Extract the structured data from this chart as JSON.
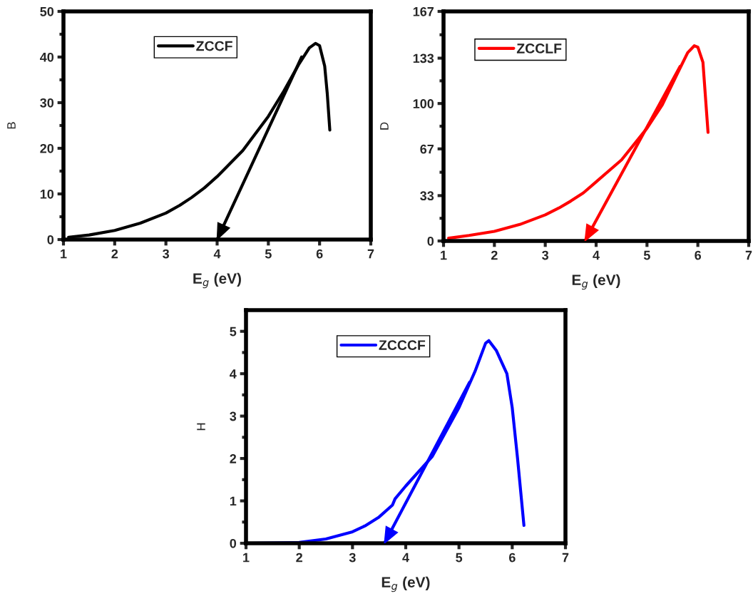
{
  "chart_data": [
    {
      "type": "line",
      "xlabel": "E$_{g}$ (eV)",
      "ylabel": "B",
      "xlim": [
        1,
        7
      ],
      "ylim": [
        0,
        50
      ],
      "xticks": [
        1,
        2,
        3,
        4,
        5,
        6,
        7
      ],
      "yticks": [
        0,
        10,
        20,
        30,
        40,
        50
      ],
      "legend": "top",
      "series": [
        {
          "name": "ZCCF",
          "color": "#000000",
          "x": [
            1.1,
            1.5,
            2.0,
            2.5,
            3.0,
            3.27,
            3.5,
            3.75,
            4.0,
            4.5,
            5.0,
            5.3,
            5.6,
            5.8,
            5.92,
            6.0,
            6.1,
            6.15,
            6.2
          ],
          "values": [
            0.5,
            1.0,
            2.0,
            3.6,
            5.8,
            7.5,
            9.2,
            11.3,
            13.8,
            19.5,
            27,
            32.5,
            38.5,
            42,
            43,
            42.5,
            38,
            32,
            24
          ]
        },
        {
          "type": "line",
          "color": "#000000",
          "x": [
            5.65,
            4.0
          ],
          "values": [
            40,
            0
          ]
        }
      ]
    },
    {
      "type": "line",
      "xlabel": "E$_{g}$ (eV)",
      "ylabel": "D",
      "xlim": [
        1,
        7
      ],
      "ylim": [
        0,
        167
      ],
      "xticks": [
        1,
        2,
        3,
        4,
        5,
        6,
        7
      ],
      "yticks": [
        0,
        33,
        67,
        100,
        133,
        167
      ],
      "legend": "top left",
      "series": [
        {
          "name": "ZCCLF",
          "color": "#ff0000",
          "x": [
            1.1,
            1.5,
            2.0,
            2.5,
            3.0,
            3.27,
            3.5,
            3.75,
            4.0,
            4.5,
            5.0,
            5.3,
            5.6,
            5.8,
            5.93,
            6.0,
            6.1,
            6.2
          ],
          "values": [
            2,
            4,
            7,
            12,
            19,
            24,
            29,
            35,
            43,
            59,
            82,
            99,
            122,
            137,
            142,
            141,
            130,
            79
          ]
        },
        {
          "type": "line",
          "color": "#ff0000",
          "x": [
            5.65,
            3.78
          ],
          "values": [
            127,
            0
          ]
        }
      ]
    },
    {
      "type": "line",
      "xlabel": "E$_{g}$ (eV)",
      "ylabel": "H",
      "xlim": [
        1,
        7
      ],
      "ylim": [
        0,
        5.5
      ],
      "xticks": [
        1,
        2,
        3,
        4,
        5,
        6,
        7
      ],
      "yticks": [
        0,
        1,
        2,
        3,
        4,
        5
      ],
      "legend": "top",
      "series": [
        {
          "name": "ZCCCF",
          "color": "#0000ff",
          "x": [
            1.1,
            2.0,
            2.5,
            3.0,
            3.25,
            3.5,
            3.75,
            3.8,
            4.0,
            4.5,
            5.0,
            5.3,
            5.5,
            5.56,
            5.7,
            5.9,
            6.0,
            6.1,
            6.22
          ],
          "values": [
            0,
            0.02,
            0.1,
            0.27,
            0.42,
            0.62,
            0.9,
            1.05,
            1.35,
            2.05,
            3.2,
            4.05,
            4.72,
            4.78,
            4.55,
            4.0,
            3.2,
            2.0,
            0.42
          ]
        },
        {
          "type": "line",
          "color": "#0000ff",
          "x": [
            5.2,
            3.6
          ],
          "values": [
            3.8,
            0
          ]
        }
      ]
    }
  ]
}
